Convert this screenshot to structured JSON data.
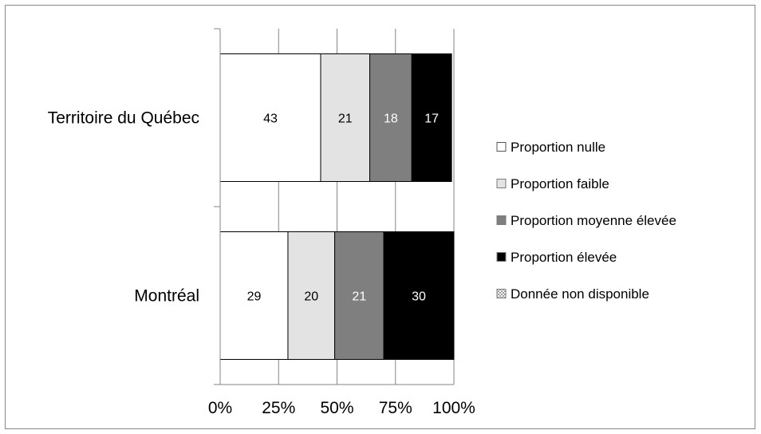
{
  "chart_data": {
    "type": "bar",
    "orientation": "horizontal",
    "stacked": "percent",
    "categories": [
      "Territoire du Québec",
      "Montréal"
    ],
    "series": [
      {
        "name": "Proportion nulle",
        "values": [
          43,
          29
        ],
        "color": "#ffffff",
        "label_color": "#000000"
      },
      {
        "name": "Proportion faible",
        "values": [
          21,
          20
        ],
        "color": "#e3e3e3",
        "label_color": "#000000"
      },
      {
        "name": "Proportion moyenne élevée",
        "values": [
          18,
          21
        ],
        "color": "#7f7f7f",
        "label_color": "#ffffff"
      },
      {
        "name": "Proportion élevée",
        "values": [
          17,
          30
        ],
        "color": "#000000",
        "label_color": "#ffffff"
      },
      {
        "name": "Donnée non disponible",
        "values": [
          0,
          0
        ],
        "color": "#d9d9d9",
        "label_color": "#000000",
        "pattern": "checkered"
      }
    ],
    "x_ticks": [
      "0%",
      "25%",
      "50%",
      "75%",
      "100%"
    ],
    "x_tick_values": [
      0,
      25,
      50,
      75,
      100
    ],
    "xlim": [
      0,
      100
    ],
    "grid": true,
    "legend_position": "right"
  }
}
